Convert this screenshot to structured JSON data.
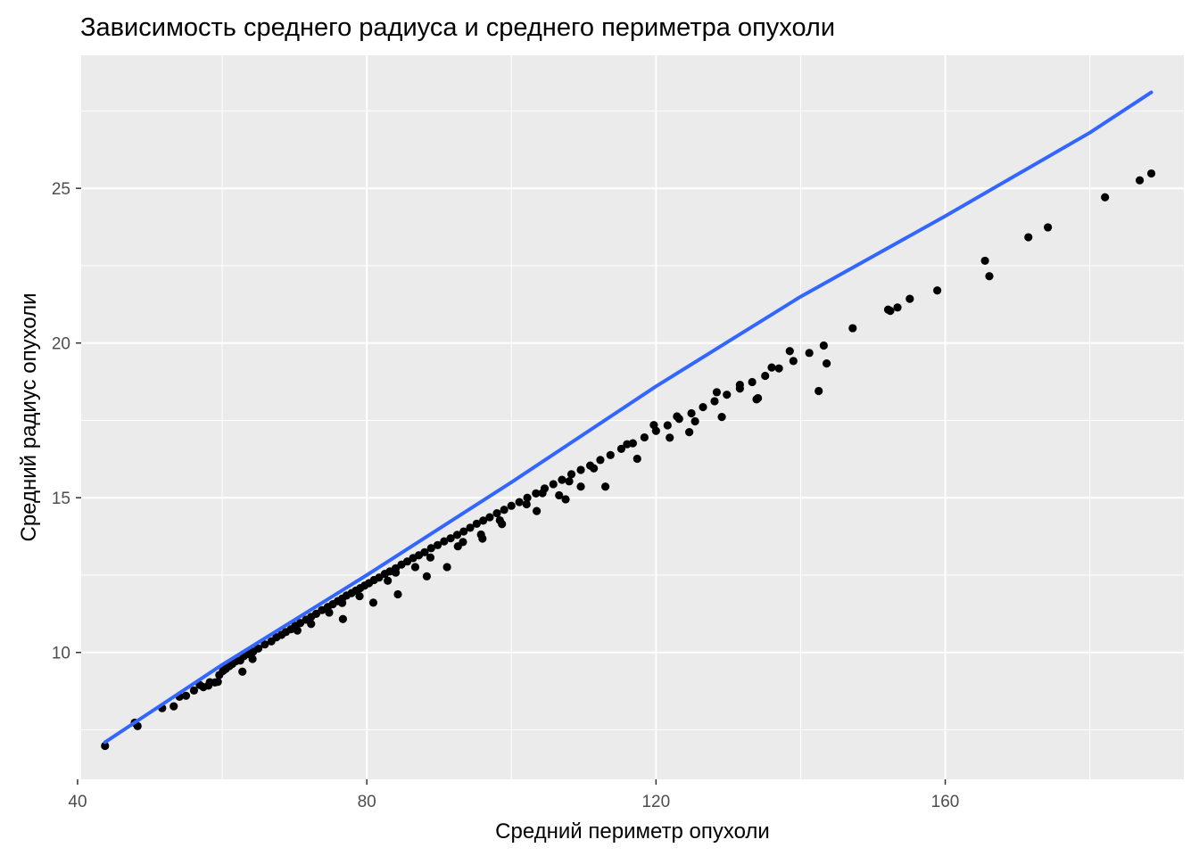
{
  "chart_data": {
    "type": "scatter",
    "title": "Зависимость среднего радиуса и среднего периметра опухоли",
    "xlabel": "Средний периметр опухоли",
    "ylabel": "Средний радиус опухоли",
    "xlim": [
      40.5,
      193.0
    ],
    "ylim": [
      5.9,
      29.3
    ],
    "x_ticks": [
      40,
      80,
      120,
      160
    ],
    "y_ticks": [
      10,
      15,
      20,
      25
    ],
    "x_tick_labels": [
      "40",
      "80",
      "120",
      "160"
    ],
    "y_tick_labels": [
      "10",
      "15",
      "20",
      "25"
    ],
    "grid": true,
    "legend": "none",
    "colors": {
      "panel_background": "#EBEBEB",
      "grid": "#FFFFFF",
      "points": "#000000",
      "trend_line": "#3366FF",
      "tick_text": "#4D4D4D"
    },
    "trend_line": {
      "type": "fitted",
      "x": [
        43.8,
        60,
        80,
        100,
        120,
        140,
        160,
        180,
        188.5
      ],
      "y": [
        7.1,
        9.6,
        12.5,
        15.5,
        18.6,
        21.5,
        24.1,
        26.8,
        28.1
      ]
    },
    "series": [
      {
        "x": [
          43.8,
          47.9,
          48.3,
          51.7,
          53.3,
          54.1,
          55.0,
          56.1,
          56.9,
          57.4,
          58.3,
          59.0,
          59.6,
          60.1,
          60.5,
          61.0,
          61.4,
          61.9,
          62.5,
          63.0,
          63.6,
          64.3,
          65.0,
          65.9,
          66.8,
          67.5,
          68.2,
          68.8,
          69.5,
          70.1,
          70.8,
          71.6,
          72.3,
          73.0,
          73.8,
          74.6,
          75.3,
          76.0,
          76.6,
          77.2,
          77.9,
          78.5,
          79.1,
          79.7,
          80.3,
          81.0,
          81.7,
          82.5,
          83.2,
          84.0,
          84.8,
          85.6,
          86.4,
          87.2,
          88.0,
          88.9,
          89.8,
          90.7,
          91.6,
          92.5,
          93.4,
          94.3,
          95.2,
          96.1,
          97.0,
          98.0,
          99.0,
          100.0,
          101.1,
          102.2,
          103.4,
          104.6,
          105.8,
          107.0,
          108.3,
          109.6,
          110.9,
          112.3,
          113.7,
          115.2,
          116.8,
          118.4,
          120.0,
          121.6,
          123.2,
          124.9,
          126.5,
          128.1,
          129.8,
          131.6,
          133.3,
          135.1,
          137.0,
          139.0,
          141.2,
          143.2,
          147.2,
          152.1,
          153.4,
          155.1,
          165.5,
          171.5,
          174.2,
          182.1,
          186.9,
          188.5,
          62.8,
          59.4,
          58.1,
          72.3,
          76.6,
          82.9,
          86.7,
          93.3,
          98.7,
          106.6,
          109.6,
          117.4,
          124.6,
          129.1,
          133.9,
          143.6,
          152.4,
          158.9,
          166.1,
          76.7,
          80.9,
          84.3,
          88.3,
          91.1,
          96.0,
          103.5,
          107.5,
          113.0,
          121.9,
          125.4,
          134.1,
          142.5,
          64.2,
          70.4,
          74.8,
          79.0,
          84.0,
          88.8,
          92.6,
          95.8,
          98.4,
          102.1,
          104.3,
          108.0,
          111.4,
          116.0,
          119.7,
          122.9,
          128.4,
          131.6,
          136.0,
          138.5
        ],
        "y": [
          6.98,
          7.73,
          7.62,
          8.2,
          8.26,
          8.57,
          8.6,
          8.77,
          8.95,
          8.88,
          9.04,
          9.03,
          9.27,
          9.4,
          9.47,
          9.56,
          9.63,
          9.72,
          9.74,
          9.88,
          9.95,
          10.03,
          10.13,
          10.26,
          10.36,
          10.49,
          10.57,
          10.66,
          10.75,
          10.86,
          10.95,
          11.06,
          11.15,
          11.25,
          11.37,
          11.47,
          11.56,
          11.66,
          11.74,
          11.84,
          11.92,
          12.0,
          12.08,
          12.16,
          12.24,
          12.34,
          12.42,
          12.54,
          12.62,
          12.72,
          12.84,
          12.94,
          13.05,
          13.14,
          13.24,
          13.37,
          13.47,
          13.59,
          13.69,
          13.8,
          13.91,
          14.03,
          14.16,
          14.26,
          14.37,
          14.5,
          14.61,
          14.74,
          14.86,
          15.0,
          15.14,
          15.3,
          15.44,
          15.58,
          15.76,
          15.9,
          16.04,
          16.22,
          16.38,
          16.58,
          16.76,
          16.95,
          17.16,
          17.34,
          17.55,
          17.73,
          17.93,
          18.12,
          18.33,
          18.53,
          18.74,
          18.94,
          19.18,
          19.42,
          19.68,
          19.92,
          20.48,
          21.08,
          21.15,
          21.43,
          22.66,
          23.42,
          23.74,
          24.71,
          25.26,
          25.48,
          9.38,
          9.05,
          8.93,
          10.92,
          11.6,
          12.32,
          12.76,
          13.57,
          14.15,
          15.08,
          15.36,
          16.26,
          17.12,
          17.61,
          18.18,
          19.34,
          21.04,
          21.7,
          22.16,
          11.08,
          11.61,
          11.88,
          12.46,
          12.76,
          13.68,
          14.57,
          14.95,
          15.36,
          16.94,
          17.47,
          18.22,
          18.45,
          9.79,
          10.71,
          11.29,
          11.82,
          12.58,
          13.07,
          13.43,
          13.81,
          14.27,
          14.79,
          15.15,
          15.53,
          15.95,
          16.73,
          17.35,
          17.63,
          18.41,
          18.65,
          19.21,
          19.74
        ]
      }
    ]
  }
}
